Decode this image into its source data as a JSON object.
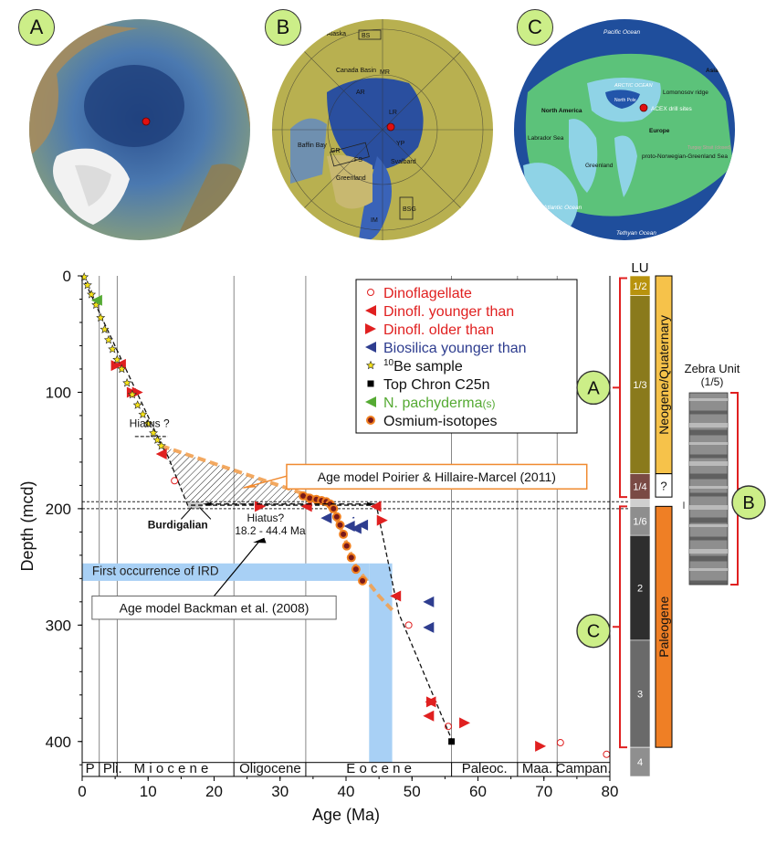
{
  "panels": {
    "A": {
      "label": "A"
    },
    "B": {
      "label": "B",
      "map_labels": [
        "Alaska",
        "BS",
        "Canada Basin",
        "MR",
        "AR",
        "LR",
        "GR",
        "FS",
        "Baffin Bay",
        "Greenland",
        "Svalbard",
        "YP",
        "BSG",
        "IM"
      ]
    },
    "C": {
      "label": "C",
      "map_labels": [
        "Pacific Ocean",
        "Asia",
        "ARCTIC OCEAN",
        "North Pole",
        "Lomonosov ridge",
        "ACEX drill sites",
        "North America",
        "Europe",
        "Labrador Sea",
        "Greenland",
        "proto-Norwegian-Greenland Sea",
        "Turgay Strait (closed)",
        "proto-Atlantic Ocean",
        "Tethyan Ocean"
      ]
    }
  },
  "chart_data": {
    "type": "scatter",
    "xlabel": "Age (Ma)",
    "ylabel": "Depth (mcd)",
    "xlim": [
      0,
      80
    ],
    "ylim": [
      0,
      430
    ],
    "x_ticks": [
      0,
      10,
      20,
      30,
      40,
      50,
      60,
      70,
      80
    ],
    "y_ticks": [
      0,
      100,
      200,
      300,
      400
    ],
    "epochs": [
      "P",
      "Pli.",
      "M i o c e n e",
      "Oligocene",
      "E o c e n e",
      "Paleoc.",
      "Maa.",
      "Campan."
    ],
    "legend": {
      "placement": "top-right",
      "entries": [
        {
          "label": "Dinoflagellate",
          "color": "#e02020",
          "marker": "open-circle"
        },
        {
          "label": "Dinofl. younger than",
          "color": "#e02020",
          "marker": "triangle-left"
        },
        {
          "label": "Dinofl. older than",
          "color": "#e02020",
          "marker": "triangle-right"
        },
        {
          "label": "Biosilica younger than",
          "color": "#2e3d8f",
          "marker": "triangle-left"
        },
        {
          "label": "Be sample",
          "sup": "10",
          "color": "#000000",
          "marker": "star"
        },
        {
          "label": "Top Chron C25n",
          "color": "#000000",
          "marker": "square"
        },
        {
          "label": "N. pachyderma",
          "suffix": "(s)",
          "color": "#55aa33",
          "marker": "triangle-left"
        },
        {
          "label": "Osmium-isotopes",
          "color": "#000000",
          "marker": "os-circle"
        }
      ]
    },
    "annotations": {
      "hiatus_1": "Hiatus ?",
      "hiatus_2": "Hiatus?",
      "hiatus_2_range": "18.2 - 44.4 Ma",
      "burdigalian": "Burdigalian",
      "ird": "First occurrence of IRD",
      "model_poirier": "Age model Poirier & Hillaire-Marcel (2011)",
      "model_backman": "Age model Backman et al. (2008)",
      "colors": {
        "poirier": "#f2a050",
        "ird": "#a8d0f5",
        "os_fill": "#7a1a1a",
        "os_ring": "#f08020"
      }
    },
    "series": [
      {
        "name": "Dinoflagellate",
        "points": [
          [
            14,
            176
          ],
          [
            49.5,
            300
          ],
          [
            55.5,
            387
          ],
          [
            72.5,
            401
          ],
          [
            79.5,
            411
          ]
        ]
      },
      {
        "name": "Dinofl. younger than",
        "points": [
          [
            5.8,
            76
          ],
          [
            12,
            153
          ],
          [
            34,
            198
          ],
          [
            44.5,
            198
          ],
          [
            47.5,
            275
          ],
          [
            52.5,
            378
          ],
          [
            52.8,
            366
          ]
        ]
      },
      {
        "name": "Dinofl. older than",
        "points": [
          [
            5.2,
            77
          ],
          [
            7.6,
            100
          ],
          [
            8.4,
            100
          ],
          [
            27,
            198
          ],
          [
            45.5,
            210
          ],
          [
            53,
            366
          ],
          [
            58,
            384
          ],
          [
            69.5,
            404
          ]
        ]
      },
      {
        "name": "Biosilica younger than",
        "points": [
          [
            37,
            208
          ],
          [
            40.5,
            215
          ],
          [
            41.5,
            217
          ],
          [
            42.5,
            214
          ],
          [
            52.5,
            280
          ],
          [
            52.5,
            302
          ]
        ]
      },
      {
        "name": "10Be sample",
        "points": [
          [
            0.3,
            1
          ],
          [
            0.8,
            8
          ],
          [
            1.4,
            16
          ],
          [
            2.1,
            25
          ],
          [
            2.8,
            36
          ],
          [
            3.4,
            46
          ],
          [
            4,
            55
          ],
          [
            4.6,
            63
          ],
          [
            5.3,
            72
          ],
          [
            6,
            80
          ],
          [
            6.8,
            92
          ],
          [
            7.6,
            102
          ],
          [
            8.4,
            111
          ],
          [
            9.2,
            119
          ],
          [
            10,
            127
          ],
          [
            10.8,
            135
          ],
          [
            11.4,
            141
          ],
          [
            12,
            146
          ]
        ]
      },
      {
        "name": "Top Chron C25n",
        "points": [
          [
            56,
            400
          ]
        ]
      },
      {
        "name": "N. pachyderma (s)",
        "points": [
          [
            2.2,
            21
          ]
        ]
      },
      {
        "name": "Osmium-isotopes",
        "points": [
          [
            33.5,
            189
          ],
          [
            34.5,
            191
          ],
          [
            35.5,
            192
          ],
          [
            36.3,
            193
          ],
          [
            37,
            194
          ],
          [
            37.6,
            196
          ],
          [
            38.1,
            200
          ],
          [
            38.6,
            207
          ],
          [
            39.1,
            214
          ],
          [
            39.6,
            222
          ],
          [
            40.1,
            232
          ],
          [
            40.8,
            242
          ],
          [
            41.5,
            252
          ],
          [
            42.5,
            262
          ]
        ]
      }
    ],
    "lines": {
      "backman": [
        [
          0,
          0
        ],
        [
          12,
          145
        ],
        [
          13,
          155
        ],
        [
          16,
          197
        ],
        [
          33,
          197
        ],
        [
          44.6,
          197
        ],
        [
          48,
          290
        ],
        [
          56,
          398
        ]
      ],
      "poirier": [
        [
          12,
          146
        ],
        [
          33,
          186
        ],
        [
          37,
          194
        ],
        [
          39,
          214
        ],
        [
          41.5,
          250
        ],
        [
          45,
          275
        ],
        [
          47,
          287
        ]
      ]
    },
    "hiatus_depths": [
      194,
      200
    ],
    "ird": {
      "depth": [
        247,
        262
      ],
      "age": [
        43.5,
        47
      ]
    }
  },
  "lithology": {
    "header": "LU",
    "units": [
      {
        "label": "1/2",
        "top": 0,
        "bottom": 17,
        "color": "#b8930e"
      },
      {
        "label": "1/3",
        "top": 17,
        "bottom": 170,
        "color": "#8a7a1c"
      },
      {
        "label": "1/4",
        "top": 170,
        "bottom": 192,
        "color": "#7a4a44"
      },
      {
        "label": "",
        "top": 192,
        "bottom": 198,
        "color": "#cfcfcf"
      },
      {
        "label": "1/6",
        "top": 198,
        "bottom": 223,
        "color": "#8e8e8e"
      },
      {
        "label": "2",
        "top": 223,
        "bottom": 313,
        "color": "#2e2e2e"
      },
      {
        "label": "3",
        "top": 313,
        "bottom": 405,
        "color": "#6a6a6a"
      },
      {
        "label": "4",
        "top": 405,
        "bottom": 430,
        "color": "#8f8f8f"
      }
    ],
    "periods": [
      {
        "label": "Neogene/Quaternary",
        "top": 0,
        "bottom": 170,
        "color": "#f6c24a"
      },
      {
        "label": "?",
        "top": 170,
        "bottom": 190,
        "color": "#ffffff"
      },
      {
        "label": "Paleogene",
        "top": 198,
        "bottom": 405,
        "color": "#ef7f25"
      }
    ],
    "zebra_title": "Zebra Unit",
    "zebra_sub": "(1/5)",
    "brackets": [
      "A",
      "B",
      "C"
    ]
  }
}
